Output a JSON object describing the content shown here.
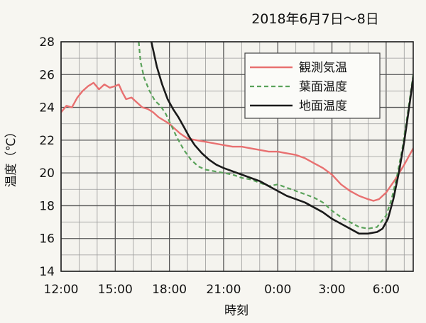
{
  "chart_data": {
    "type": "line",
    "title": "2018年6月7日～8日",
    "xlabel": "時刻",
    "ylabel": "温度（℃）",
    "ylim": [
      14,
      28
    ],
    "xlim": [
      0,
      19.5
    ],
    "x_unit_note": "hours after 12:00 on 2018-06-07",
    "x_ticks": [
      0,
      3,
      6,
      9,
      12,
      15,
      18
    ],
    "x_tick_labels": [
      "12:00",
      "15:00",
      "18:00",
      "21:00",
      "0:00",
      "3:00",
      "6:00"
    ],
    "y_ticks": [
      14,
      16,
      18,
      20,
      22,
      24,
      26,
      28
    ],
    "y_tick_labels": [
      "14",
      "16",
      "18",
      "20",
      "22",
      "24",
      "26",
      "28"
    ],
    "grid": true,
    "legend_position": "top-right",
    "series": [
      {
        "name": "観測気温",
        "color": "#e87070",
        "style": "solid",
        "points": [
          [
            0,
            23.7
          ],
          [
            0.3,
            24.1
          ],
          [
            0.6,
            24.0
          ],
          [
            0.9,
            24.6
          ],
          [
            1.2,
            25.0
          ],
          [
            1.5,
            25.3
          ],
          [
            1.8,
            25.5
          ],
          [
            2.1,
            25.1
          ],
          [
            2.4,
            25.4
          ],
          [
            2.7,
            25.2
          ],
          [
            3.0,
            25.3
          ],
          [
            3.2,
            25.4
          ],
          [
            3.4,
            24.9
          ],
          [
            3.6,
            24.5
          ],
          [
            3.9,
            24.6
          ],
          [
            4.2,
            24.3
          ],
          [
            4.5,
            24.0
          ],
          [
            4.8,
            23.9
          ],
          [
            5.1,
            23.7
          ],
          [
            5.4,
            23.4
          ],
          [
            5.7,
            23.2
          ],
          [
            6.0,
            23.0
          ],
          [
            6.3,
            22.7
          ],
          [
            6.6,
            22.4
          ],
          [
            7.0,
            22.1
          ],
          [
            7.5,
            22.0
          ],
          [
            8.0,
            21.9
          ],
          [
            8.5,
            21.8
          ],
          [
            9.0,
            21.7
          ],
          [
            9.5,
            21.6
          ],
          [
            10.0,
            21.6
          ],
          [
            10.5,
            21.5
          ],
          [
            11.0,
            21.4
          ],
          [
            11.5,
            21.3
          ],
          [
            12.0,
            21.3
          ],
          [
            12.5,
            21.2
          ],
          [
            13.0,
            21.1
          ],
          [
            13.5,
            20.9
          ],
          [
            14.0,
            20.6
          ],
          [
            14.5,
            20.3
          ],
          [
            15.0,
            19.9
          ],
          [
            15.5,
            19.3
          ],
          [
            16.0,
            18.9
          ],
          [
            16.5,
            18.6
          ],
          [
            17.0,
            18.4
          ],
          [
            17.3,
            18.3
          ],
          [
            17.6,
            18.4
          ],
          [
            18.0,
            18.8
          ],
          [
            18.5,
            19.6
          ],
          [
            19.0,
            20.5
          ],
          [
            19.5,
            21.5
          ],
          [
            19.9,
            22.0
          ]
        ]
      },
      {
        "name": "葉面温度",
        "color": "#5aa25a",
        "style": "dashed",
        "points": [
          [
            4.3,
            28.0
          ],
          [
            4.4,
            26.8
          ],
          [
            4.6,
            25.8
          ],
          [
            4.9,
            25.0
          ],
          [
            5.2,
            24.4
          ],
          [
            5.5,
            24.1
          ],
          [
            5.8,
            23.6
          ],
          [
            6.1,
            22.9
          ],
          [
            6.4,
            22.2
          ],
          [
            6.8,
            21.4
          ],
          [
            7.2,
            20.8
          ],
          [
            7.6,
            20.4
          ],
          [
            8.0,
            20.2
          ],
          [
            8.5,
            20.1
          ],
          [
            9.0,
            20.0
          ],
          [
            9.5,
            19.9
          ],
          [
            10.0,
            19.7
          ],
          [
            10.5,
            19.6
          ],
          [
            11.0,
            19.4
          ],
          [
            11.5,
            19.2
          ],
          [
            12.0,
            19.3
          ],
          [
            12.5,
            19.1
          ],
          [
            13.0,
            18.9
          ],
          [
            13.5,
            18.7
          ],
          [
            14.0,
            18.5
          ],
          [
            14.5,
            18.2
          ],
          [
            15.0,
            17.7
          ],
          [
            15.5,
            17.3
          ],
          [
            16.0,
            17.0
          ],
          [
            16.5,
            16.7
          ],
          [
            17.0,
            16.6
          ],
          [
            17.5,
            16.7
          ],
          [
            18.0,
            17.4
          ],
          [
            18.3,
            18.4
          ],
          [
            18.6,
            19.8
          ],
          [
            18.9,
            21.5
          ],
          [
            19.2,
            23.7
          ],
          [
            19.5,
            26.0
          ],
          [
            19.7,
            28.0
          ]
        ]
      },
      {
        "name": "地面温度",
        "color": "#1a1a1a",
        "style": "solid",
        "points": [
          [
            5.0,
            28.0
          ],
          [
            5.3,
            26.5
          ],
          [
            5.6,
            25.4
          ],
          [
            5.9,
            24.5
          ],
          [
            6.2,
            23.9
          ],
          [
            6.5,
            23.4
          ],
          [
            6.8,
            22.8
          ],
          [
            7.1,
            22.2
          ],
          [
            7.4,
            21.7
          ],
          [
            7.8,
            21.2
          ],
          [
            8.2,
            20.8
          ],
          [
            8.6,
            20.5
          ],
          [
            9.0,
            20.3
          ],
          [
            9.5,
            20.1
          ],
          [
            10.0,
            19.9
          ],
          [
            10.5,
            19.7
          ],
          [
            11.0,
            19.5
          ],
          [
            11.5,
            19.2
          ],
          [
            12.0,
            18.9
          ],
          [
            12.5,
            18.6
          ],
          [
            13.0,
            18.4
          ],
          [
            13.5,
            18.2
          ],
          [
            14.0,
            17.9
          ],
          [
            14.5,
            17.6
          ],
          [
            15.0,
            17.2
          ],
          [
            15.5,
            16.9
          ],
          [
            16.0,
            16.6
          ],
          [
            16.5,
            16.3
          ],
          [
            17.0,
            16.3
          ],
          [
            17.5,
            16.4
          ],
          [
            17.8,
            16.6
          ],
          [
            18.1,
            17.2
          ],
          [
            18.4,
            18.4
          ],
          [
            18.7,
            20.0
          ],
          [
            19.0,
            21.9
          ],
          [
            19.3,
            24.2
          ],
          [
            19.6,
            26.6
          ],
          [
            19.8,
            28.0
          ]
        ]
      }
    ]
  }
}
